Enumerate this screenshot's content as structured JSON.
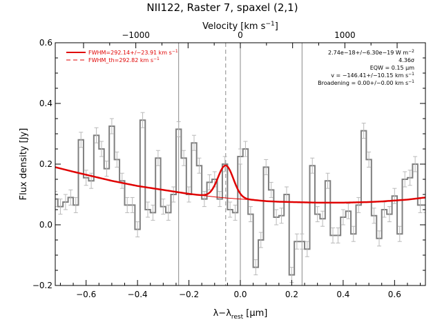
{
  "chart_data": {
    "type": "line",
    "title": "NII122, Raster 7, spaxel (2,1)",
    "xlabel_prefix": "λ−λ",
    "xlabel_sub": "rest",
    "xlabel_unit": " [μm]",
    "ylabel": "Flux density [Jy]",
    "top_axis_label_main": "Velocity [km s",
    "top_axis_label_exp": "−1",
    "top_axis_label_end": "]",
    "xlim": [
      -0.72,
      0.72
    ],
    "ylim": [
      -0.2,
      0.6
    ],
    "x_ticks": [
      -0.6,
      -0.4,
      -0.2,
      0.0,
      0.2,
      0.4,
      0.6
    ],
    "x_tick_labels": [
      "−0.6",
      "−0.4",
      "−0.2",
      "0.0",
      "0.2",
      "0.4",
      "0.6"
    ],
    "y_ticks": [
      -0.2,
      0.0,
      0.2,
      0.4,
      0.6
    ],
    "y_tick_labels": [
      "−0.2",
      "0.0",
      "0.2",
      "0.4",
      "0.6"
    ],
    "top_ticks_velocity": [
      -1000,
      0,
      1000
    ],
    "top_tick_labels": [
      "−1000",
      "0",
      "1000"
    ],
    "rest_wavelength_um": 121.9,
    "legend": [
      {
        "text": "FWHM=292.14+/−23.91 km s",
        "exp": "−1",
        "style": "solid"
      },
      {
        "text": "FWHM_th=292.82 km s",
        "exp": "−1",
        "style": "dashed"
      }
    ],
    "annotations": [
      {
        "text": "2.74e−18+/−6.30e−19 W m",
        "exp": "−2"
      },
      {
        "text": "4.36σ",
        "exp": ""
      },
      {
        "text": "EQW = 0.15 μm",
        "exp": ""
      },
      {
        "text": "v = −146.41+/−10.15 km s",
        "exp": "−1"
      },
      {
        "text": "Broadening = 0.00+/−0.00 km s",
        "exp": "−1"
      }
    ],
    "vertical_lines": {
      "solid": [
        -0.24,
        0.0,
        0.24
      ],
      "dashed": [
        -0.057
      ]
    },
    "spectrum": {
      "x": [
        -0.72,
        -0.7,
        -0.68,
        -0.66,
        -0.64,
        -0.62,
        -0.6,
        -0.58,
        -0.56,
        -0.54,
        -0.52,
        -0.5,
        -0.48,
        -0.46,
        -0.44,
        -0.42,
        -0.4,
        -0.38,
        -0.36,
        -0.34,
        -0.32,
        -0.3,
        -0.28,
        -0.26,
        -0.24,
        -0.22,
        -0.2,
        -0.18,
        -0.16,
        -0.14,
        -0.12,
        -0.1,
        -0.08,
        -0.06,
        -0.04,
        -0.02,
        0.0,
        0.02,
        0.04,
        0.06,
        0.08,
        0.1,
        0.12,
        0.14,
        0.16,
        0.18,
        0.2,
        0.22,
        0.24,
        0.26,
        0.28,
        0.3,
        0.32,
        0.34,
        0.36,
        0.38,
        0.4,
        0.42,
        0.44,
        0.46,
        0.48,
        0.5,
        0.52,
        0.54,
        0.56,
        0.58,
        0.6,
        0.62,
        0.64,
        0.66,
        0.68,
        0.7,
        0.72
      ],
      "y": [
        0.085,
        0.06,
        0.075,
        0.09,
        0.065,
        0.28,
        0.155,
        0.145,
        0.295,
        0.25,
        0.185,
        0.325,
        0.215,
        0.145,
        0.065,
        0.065,
        -0.015,
        0.345,
        0.05,
        0.04,
        0.22,
        0.06,
        0.04,
        0.1,
        0.315,
        0.22,
        0.1,
        0.27,
        0.195,
        0.085,
        0.14,
        0.15,
        0.085,
        0.2,
        0.05,
        0.04,
        0.225,
        0.25,
        0.035,
        -0.14,
        -0.05,
        0.19,
        0.115,
        0.025,
        0.03,
        0.1,
        -0.165,
        -0.055,
        -0.055,
        -0.08,
        0.195,
        0.035,
        0.02,
        0.145,
        -0.035,
        -0.035,
        0.025,
        0.045,
        -0.03,
        0.065,
        0.31,
        0.215,
        0.03,
        -0.045,
        0.05,
        0.035,
        0.095,
        -0.03,
        0.15,
        0.155,
        0.2,
        0.065,
        0.065
      ],
      "err": 0.025
    },
    "continuum": {
      "x": [
        -0.72,
        -0.65,
        -0.6,
        -0.5,
        -0.4,
        -0.3,
        -0.2,
        -0.15,
        -0.1,
        -0.05,
        0.0,
        0.05,
        0.1,
        0.15,
        0.2,
        0.25,
        0.3,
        0.35,
        0.4,
        0.45,
        0.5,
        0.55,
        0.6,
        0.65,
        0.72
      ],
      "y": [
        0.19,
        0.175,
        0.165,
        0.145,
        0.128,
        0.115,
        0.102,
        0.097,
        0.092,
        0.088,
        0.085,
        0.082,
        0.078,
        0.076,
        0.075,
        0.074,
        0.073,
        0.073,
        0.073,
        0.074,
        0.075,
        0.077,
        0.08,
        0.083,
        0.09
      ]
    },
    "gaussian": {
      "center": -0.057,
      "amplitude": 0.107,
      "sigma": 0.03,
      "fit_range": [
        -0.2,
        0.1
      ]
    },
    "colors": {
      "fit": "#e00000",
      "spectrum": "#7f7f7f",
      "lines": "#888888",
      "text": "#000000"
    }
  }
}
